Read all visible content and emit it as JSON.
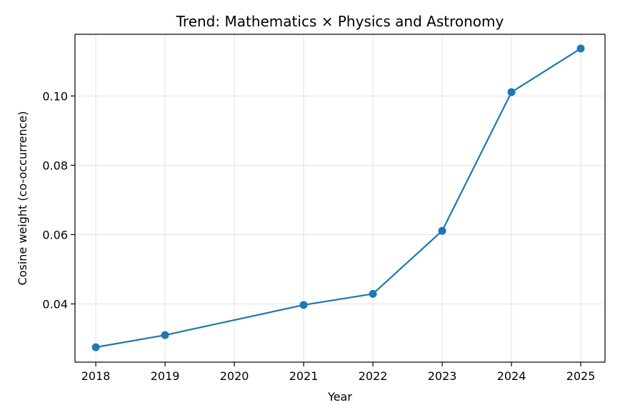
{
  "chart_data": {
    "type": "line",
    "title": "Trend: Mathematics × Physics and Astronomy",
    "xlabel": "Year",
    "ylabel": "Cosine weight (co-occurrence)",
    "x_ticks": [
      "2018",
      "2019",
      "2020",
      "2021",
      "2022",
      "2023",
      "2024",
      "2025"
    ],
    "y_ticks": [
      "0.04",
      "0.06",
      "0.08",
      "0.10"
    ],
    "xlim": [
      2017.7,
      2025.35
    ],
    "ylim": [
      0.0232,
      0.1178
    ],
    "grid": true,
    "series": [
      {
        "color": "#1f77b4",
        "marker": "circle",
        "x": [
          2018,
          2019,
          2021,
          2022,
          2023,
          2024,
          2025
        ],
        "y": [
          0.0275,
          0.031,
          0.0397,
          0.0429,
          0.0611,
          0.1011,
          0.1137
        ]
      }
    ]
  }
}
